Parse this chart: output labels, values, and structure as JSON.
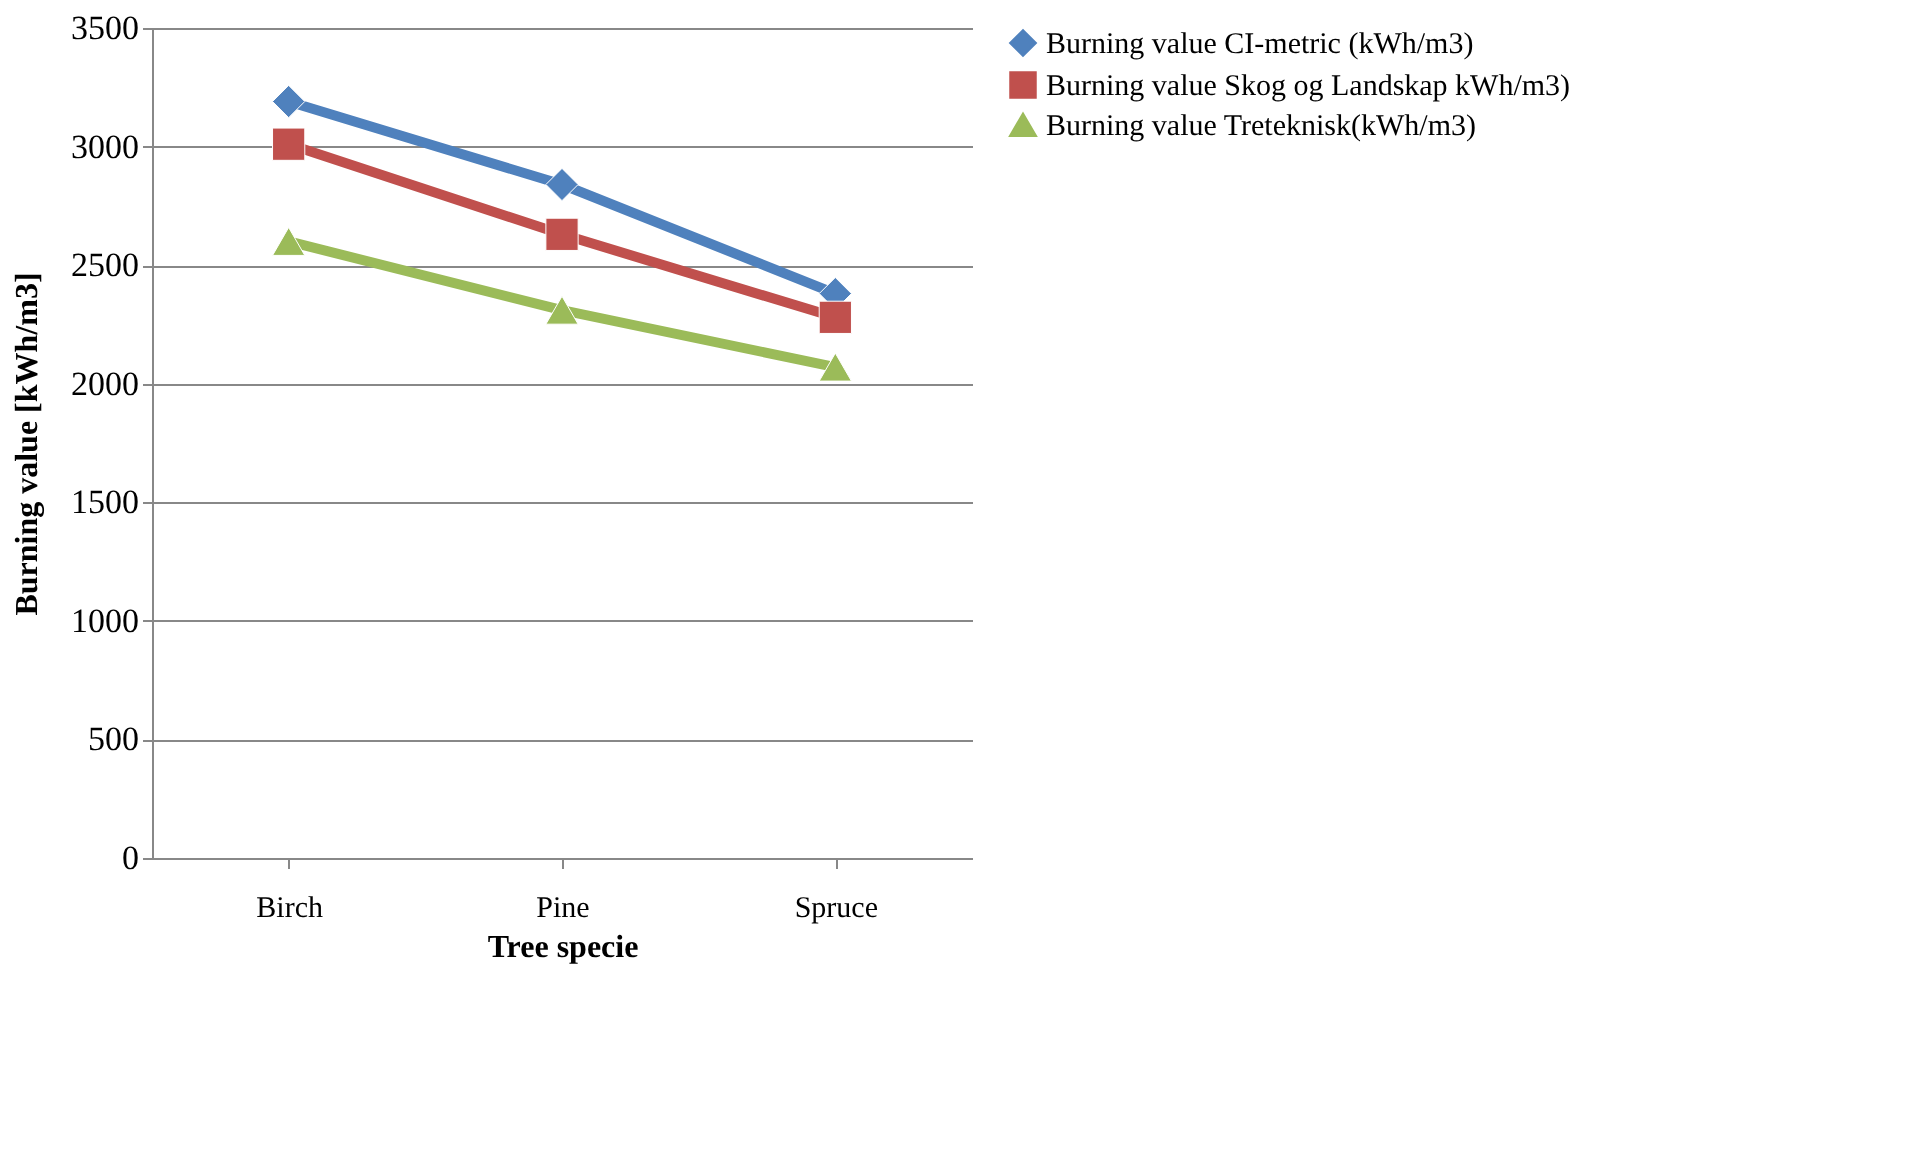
{
  "chart_data": {
    "type": "line",
    "xlabel": "Tree specie",
    "ylabel": "Burning value [kWh/m3]",
    "categories": [
      "Birch",
      "Pine",
      "Spruce"
    ],
    "series": [
      {
        "name": "Burning value CI-metric (kWh/m3)",
        "color": "#4f81bd",
        "marker": "diamond",
        "values": [
          3190,
          2840,
          2380
        ]
      },
      {
        "name": "Burning value Skog og Landskap kWh/m3)",
        "color": "#c0504d",
        "marker": "square",
        "values": [
          3010,
          2630,
          2280
        ]
      },
      {
        "name": "Burning value Treteknisk(kWh/m3)",
        "color": "#9bbb59",
        "marker": "triangle",
        "values": [
          2600,
          2310,
          2070
        ]
      }
    ],
    "ylim": [
      0,
      3500
    ],
    "yticks": [
      0,
      500,
      1000,
      1500,
      2000,
      2500,
      3000,
      3500
    ],
    "grid": "y",
    "legend": "right",
    "line_style": "solid"
  }
}
